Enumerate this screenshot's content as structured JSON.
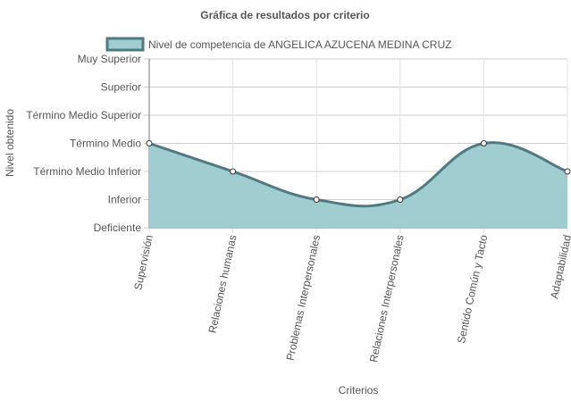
{
  "chart_data": {
    "type": "area",
    "title": "Gráfica de resultados por criterio",
    "xlabel": "Criterios",
    "ylabel": "Nivel obtenido",
    "legend_position": "top",
    "grid": true,
    "levels": [
      "Deficiente",
      "Inferior",
      "Término Medio Inferior",
      "Término Medio",
      "Término Medio Superior",
      "Superior",
      "Muy Superior"
    ],
    "ylim": [
      0,
      6
    ],
    "categories": [
      "Supervisión",
      "Relaciones humanas",
      "Problemas Interpersonales",
      "Relaciones Interpersonales",
      "Sentido Común y Tacto",
      "Adaptabilidad"
    ],
    "series": [
      {
        "name": "Nivel de competencia de ANGELICA AZUCENA MEDINA CRUZ",
        "values": [
          3,
          2,
          1,
          1,
          3,
          2
        ],
        "value_labels": [
          "Término Medio",
          "Término Medio Inferior",
          "Inferior",
          "Inferior",
          "Término Medio",
          "Término Medio Inferior"
        ],
        "fill_color": "#a0cdd0",
        "line_color": "#507a82",
        "point_fill": "#ffffff",
        "point_stroke": "#333333"
      }
    ]
  }
}
